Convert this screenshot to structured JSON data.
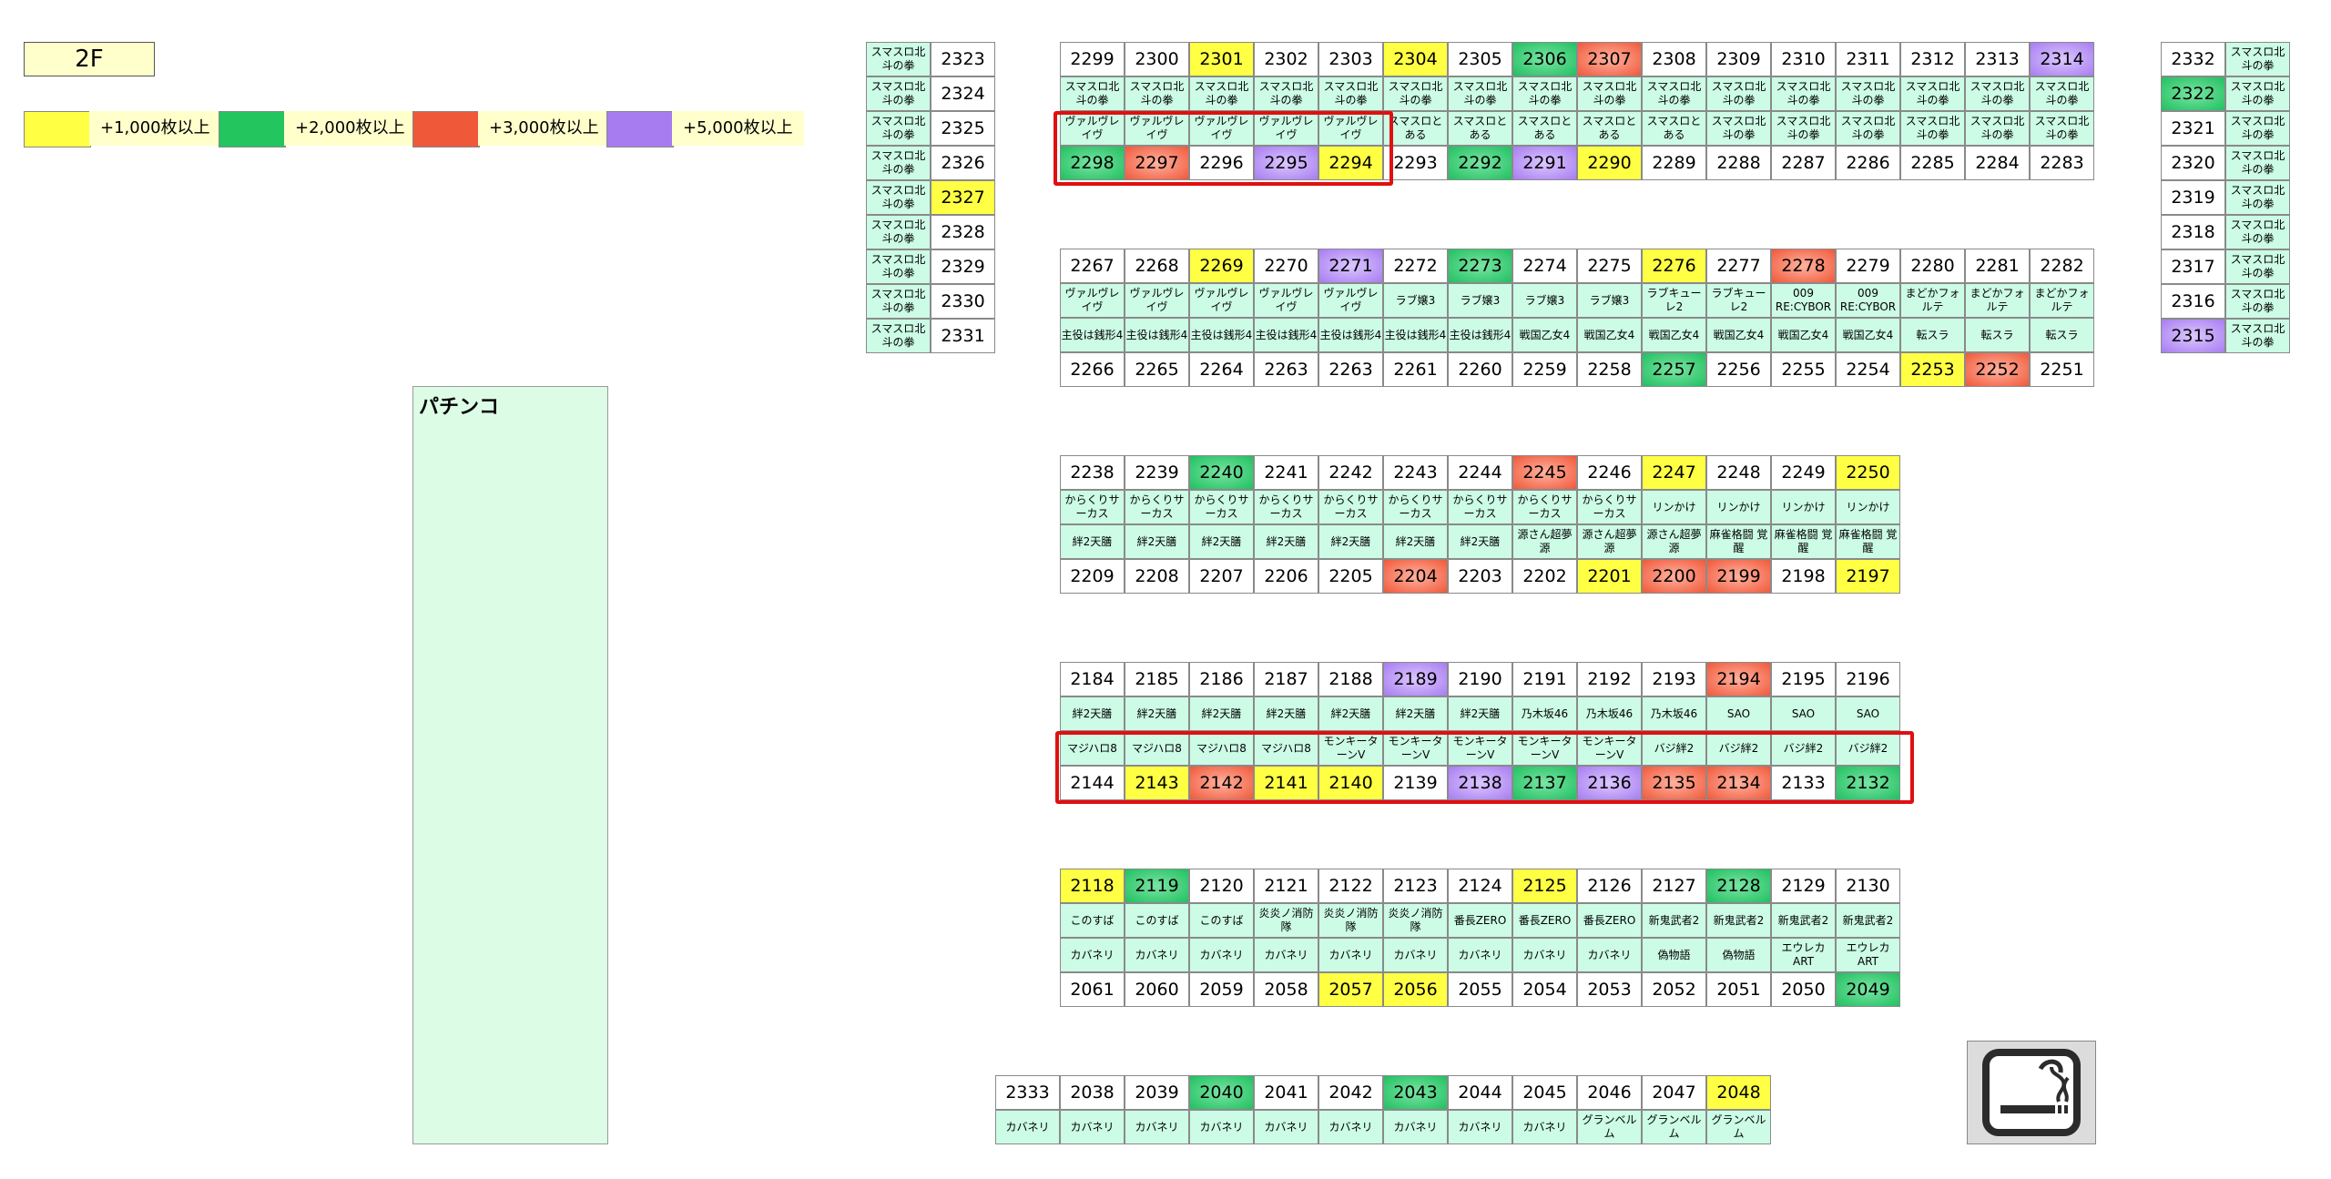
{
  "floor": "2F",
  "legend": [
    {
      "label": "+1,000枚以上",
      "color": "#ffff44"
    },
    {
      "label": "+2,000枚以上",
      "color": "#22c55e"
    },
    {
      "label": "+3,000枚以上",
      "color": "#f0583a"
    },
    {
      "label": "+5,000枚以上",
      "color": "#a77cf0"
    }
  ],
  "pachinko_label": "パチンコ",
  "smoking_area_icon": "smoking-icon",
  "left_block": {
    "machine": "スマスロ北斗の拳",
    "units": [
      {
        "n": "2323",
        "c": ""
      },
      {
        "n": "2324",
        "c": ""
      },
      {
        "n": "2325",
        "c": ""
      },
      {
        "n": "2326",
        "c": ""
      },
      {
        "n": "2327",
        "c": "y"
      },
      {
        "n": "2328",
        "c": ""
      },
      {
        "n": "2329",
        "c": ""
      },
      {
        "n": "2330",
        "c": ""
      },
      {
        "n": "2331",
        "c": ""
      }
    ]
  },
  "right_block": {
    "machine": "スマスロ北斗の拳",
    "units": [
      {
        "n": "2332",
        "c": ""
      },
      {
        "n": "2322",
        "c": "g"
      },
      {
        "n": "2321",
        "c": ""
      },
      {
        "n": "2320",
        "c": ""
      },
      {
        "n": "2319",
        "c": ""
      },
      {
        "n": "2318",
        "c": ""
      },
      {
        "n": "2317",
        "c": ""
      },
      {
        "n": "2316",
        "c": ""
      },
      {
        "n": "2315",
        "c": "p"
      }
    ]
  },
  "islands": [
    {
      "top": [
        [
          "2299",
          ""
        ],
        [
          "2300",
          ""
        ],
        [
          "2301",
          "y"
        ],
        [
          "2302",
          ""
        ],
        [
          "2303",
          ""
        ],
        [
          "2304",
          "y"
        ],
        [
          "2305",
          ""
        ],
        [
          "2306",
          "g"
        ],
        [
          "2307",
          "r"
        ],
        [
          "2308",
          ""
        ],
        [
          "2309",
          ""
        ],
        [
          "2310",
          ""
        ],
        [
          "2311",
          ""
        ],
        [
          "2312",
          ""
        ],
        [
          "2313",
          ""
        ],
        [
          "2314",
          "p"
        ]
      ],
      "m1": [
        "スマスロ北斗の拳",
        "スマスロ北斗の拳",
        "スマスロ北斗の拳",
        "スマスロ北斗の拳",
        "スマスロ北斗の拳",
        "スマスロ北斗の拳",
        "スマスロ北斗の拳",
        "スマスロ北斗の拳",
        "スマスロ北斗の拳",
        "スマスロ北斗の拳",
        "スマスロ北斗の拳",
        "スマスロ北斗の拳",
        "スマスロ北斗の拳",
        "スマスロ北斗の拳",
        "スマスロ北斗の拳",
        "スマスロ北斗の拳"
      ],
      "m2": [
        "ヴァルヴレイヴ",
        "ヴァルヴレイヴ",
        "ヴァルヴレイヴ",
        "ヴァルヴレイヴ",
        "ヴァルヴレイヴ",
        "スマスロとある",
        "スマスロとある",
        "スマスロとある",
        "スマスロとある",
        "スマスロとある",
        "スマスロ北斗の拳",
        "スマスロ北斗の拳",
        "スマスロ北斗の拳",
        "スマスロ北斗の拳",
        "スマスロ北斗の拳",
        "スマスロ北斗の拳"
      ],
      "bottom": [
        [
          "2298",
          "g"
        ],
        [
          "2297",
          "r"
        ],
        [
          "2296",
          ""
        ],
        [
          "2295",
          "p"
        ],
        [
          "2294",
          "y"
        ],
        [
          "2293",
          ""
        ],
        [
          "2292",
          "g"
        ],
        [
          "2291",
          "p"
        ],
        [
          "2290",
          "y"
        ],
        [
          "2289",
          ""
        ],
        [
          "2288",
          ""
        ],
        [
          "2287",
          ""
        ],
        [
          "2286",
          ""
        ],
        [
          "2285",
          ""
        ],
        [
          "2284",
          ""
        ],
        [
          "2283",
          ""
        ]
      ]
    },
    {
      "top": [
        [
          "2267",
          ""
        ],
        [
          "2268",
          ""
        ],
        [
          "2269",
          "y"
        ],
        [
          "2270",
          ""
        ],
        [
          "2271",
          "p"
        ],
        [
          "2272",
          ""
        ],
        [
          "2273",
          "g"
        ],
        [
          "2274",
          ""
        ],
        [
          "2275",
          ""
        ],
        [
          "2276",
          "y"
        ],
        [
          "2277",
          ""
        ],
        [
          "2278",
          "r"
        ],
        [
          "2279",
          ""
        ],
        [
          "2280",
          ""
        ],
        [
          "2281",
          ""
        ],
        [
          "2282",
          ""
        ]
      ],
      "m1": [
        "ヴァルヴレイヴ",
        "ヴァルヴレイヴ",
        "ヴァルヴレイヴ",
        "ヴァルヴレイヴ",
        "ヴァルヴレイヴ",
        "ラブ嬢3",
        "ラブ嬢3",
        "ラブ嬢3",
        "ラブ嬢3",
        "ラブキューレ2",
        "ラブキューレ2",
        "009 RE:CYBOR",
        "009 RE:CYBOR",
        "まどかフォルテ",
        "まどかフォルテ",
        "まどかフォルテ"
      ],
      "m2": [
        "主役は銭形4",
        "主役は銭形4",
        "主役は銭形4",
        "主役は銭形4",
        "主役は銭形4",
        "主役は銭形4",
        "主役は銭形4",
        "戦国乙女4",
        "戦国乙女4",
        "戦国乙女4",
        "戦国乙女4",
        "戦国乙女4",
        "戦国乙女4",
        "転スラ",
        "転スラ",
        "転スラ"
      ],
      "bottom": [
        [
          "2266",
          ""
        ],
        [
          "2265",
          ""
        ],
        [
          "2264",
          ""
        ],
        [
          "2263",
          ""
        ],
        [
          "2263",
          ""
        ],
        [
          "2261",
          ""
        ],
        [
          "2260",
          ""
        ],
        [
          "2259",
          ""
        ],
        [
          "2258",
          ""
        ],
        [
          "2257",
          "g"
        ],
        [
          "2256",
          ""
        ],
        [
          "2255",
          ""
        ],
        [
          "2254",
          ""
        ],
        [
          "2253",
          "y"
        ],
        [
          "2252",
          "r"
        ],
        [
          "2251",
          ""
        ]
      ]
    },
    {
      "top": [
        [
          "2238",
          ""
        ],
        [
          "2239",
          ""
        ],
        [
          "2240",
          "g"
        ],
        [
          "2241",
          ""
        ],
        [
          "2242",
          ""
        ],
        [
          "2243",
          ""
        ],
        [
          "2244",
          ""
        ],
        [
          "2245",
          "r"
        ],
        [
          "2246",
          ""
        ],
        [
          "2247",
          "y"
        ],
        [
          "2248",
          ""
        ],
        [
          "2249",
          ""
        ],
        [
          "2250",
          "y"
        ]
      ],
      "m1": [
        "からくりサーカス",
        "からくりサーカス",
        "からくりサーカス",
        "からくりサーカス",
        "からくりサーカス",
        "からくりサーカス",
        "からくりサーカス",
        "からくりサーカス",
        "からくりサーカス",
        "リンかけ",
        "リンかけ",
        "リンかけ",
        "リンかけ"
      ],
      "m2": [
        "絆2天膳",
        "絆2天膳",
        "絆2天膳",
        "絆2天膳",
        "絆2天膳",
        "絆2天膳",
        "絆2天膳",
        "源さん超夢源",
        "源さん超夢源",
        "源さん超夢源",
        "麻雀格闘 覚醒",
        "麻雀格闘 覚醒",
        "麻雀格闘 覚醒"
      ],
      "bottom": [
        [
          "2209",
          ""
        ],
        [
          "2208",
          ""
        ],
        [
          "2207",
          ""
        ],
        [
          "2206",
          ""
        ],
        [
          "2205",
          ""
        ],
        [
          "2204",
          "r"
        ],
        [
          "2203",
          ""
        ],
        [
          "2202",
          ""
        ],
        [
          "2201",
          "y"
        ],
        [
          "2200",
          "r"
        ],
        [
          "2199",
          "r"
        ],
        [
          "2198",
          ""
        ],
        [
          "2197",
          "y"
        ]
      ]
    },
    {
      "top": [
        [
          "2184",
          ""
        ],
        [
          "2185",
          ""
        ],
        [
          "2186",
          ""
        ],
        [
          "2187",
          ""
        ],
        [
          "2188",
          ""
        ],
        [
          "2189",
          "p"
        ],
        [
          "2190",
          ""
        ],
        [
          "2191",
          ""
        ],
        [
          "2192",
          ""
        ],
        [
          "2193",
          ""
        ],
        [
          "2194",
          "r"
        ],
        [
          "2195",
          ""
        ],
        [
          "2196",
          ""
        ]
      ],
      "m1": [
        "絆2天膳",
        "絆2天膳",
        "絆2天膳",
        "絆2天膳",
        "絆2天膳",
        "絆2天膳",
        "絆2天膳",
        "乃木坂46",
        "乃木坂46",
        "乃木坂46",
        "SAO",
        "SAO",
        "SAO"
      ],
      "m2": [
        "マジハロ8",
        "マジハロ8",
        "マジハロ8",
        "マジハロ8",
        "モンキーターンV",
        "モンキーターンV",
        "モンキーターンV",
        "モンキーターンV",
        "モンキーターンV",
        "バジ絆2",
        "バジ絆2",
        "バジ絆2",
        "バジ絆2"
      ],
      "bottom": [
        [
          "2144",
          ""
        ],
        [
          "2143",
          "y"
        ],
        [
          "2142",
          "r"
        ],
        [
          "2141",
          "y"
        ],
        [
          "2140",
          "y"
        ],
        [
          "2139",
          ""
        ],
        [
          "2138",
          "p"
        ],
        [
          "2137",
          "g"
        ],
        [
          "2136",
          "p"
        ],
        [
          "2135",
          "r"
        ],
        [
          "2134",
          "r"
        ],
        [
          "2133",
          ""
        ],
        [
          "2132",
          "g"
        ]
      ]
    },
    {
      "top": [
        [
          "2118",
          "y"
        ],
        [
          "2119",
          "g"
        ],
        [
          "2120",
          ""
        ],
        [
          "2121",
          ""
        ],
        [
          "2122",
          ""
        ],
        [
          "2123",
          ""
        ],
        [
          "2124",
          ""
        ],
        [
          "2125",
          "y"
        ],
        [
          "2126",
          ""
        ],
        [
          "2127",
          ""
        ],
        [
          "2128",
          "g"
        ],
        [
          "2129",
          ""
        ],
        [
          "2130",
          ""
        ]
      ],
      "m1": [
        "このすば",
        "このすば",
        "このすば",
        "炎炎ノ消防隊",
        "炎炎ノ消防隊",
        "炎炎ノ消防隊",
        "番長ZERO",
        "番長ZERO",
        "番長ZERO",
        "新鬼武者2",
        "新鬼武者2",
        "新鬼武者2",
        "新鬼武者2"
      ],
      "m2": [
        "カバネリ",
        "カバネリ",
        "カバネリ",
        "カバネリ",
        "カバネリ",
        "カバネリ",
        "カバネリ",
        "カバネリ",
        "カバネリ",
        "偽物語",
        "偽物語",
        "エウレカART",
        "エウレカART"
      ],
      "bottom": [
        [
          "2061",
          ""
        ],
        [
          "2060",
          ""
        ],
        [
          "2059",
          ""
        ],
        [
          "2058",
          ""
        ],
        [
          "2057",
          "y"
        ],
        [
          "2056",
          "y"
        ],
        [
          "2055",
          ""
        ],
        [
          "2054",
          ""
        ],
        [
          "2053",
          ""
        ],
        [
          "2052",
          ""
        ],
        [
          "2051",
          ""
        ],
        [
          "2050",
          ""
        ],
        [
          "2049",
          "g"
        ]
      ]
    }
  ],
  "bottom_row": {
    "top": [
      [
        "2333",
        ""
      ],
      [
        "2038",
        ""
      ],
      [
        "2039",
        ""
      ],
      [
        "2040",
        "g"
      ],
      [
        "2041",
        ""
      ],
      [
        "2042",
        ""
      ],
      [
        "2043",
        "g"
      ],
      [
        "2044",
        ""
      ],
      [
        "2045",
        ""
      ],
      [
        "2046",
        ""
      ],
      [
        "2047",
        ""
      ],
      [
        "2048",
        "y"
      ]
    ],
    "m1": [
      "カバネリ",
      "カバネリ",
      "カバネリ",
      "カバネリ",
      "カバネリ",
      "カバネリ",
      "カバネリ",
      "カバネリ",
      "カバネリ",
      "グランベルム",
      "グランベルム",
      "グランベルム"
    ]
  }
}
